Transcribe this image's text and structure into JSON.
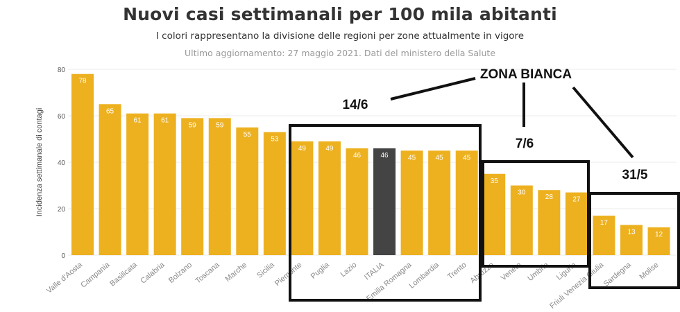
{
  "header": {
    "title": "Nuovi casi settimanali per 100 mila abitanti",
    "subtitle": "I colori rappresentano la divisione delle regioni per zone attualmente in vigore",
    "updated": "Ultimo aggiornamento: 27 maggio 2021. Dati del ministero della Salute"
  },
  "chart_data": {
    "type": "bar",
    "title": "Nuovi casi settimanali per 100 mila abitanti",
    "xlabel": "",
    "ylabel": "Incidenza settimanale di contagi",
    "ylim": [
      0,
      80
    ],
    "yticks": [
      0,
      20,
      40,
      60,
      80
    ],
    "grid": true,
    "categories": [
      "Valle d'Aosta",
      "Campania",
      "Basilicata",
      "Calabria",
      "Bolzano",
      "Toscana",
      "Marche",
      "Sicilia",
      "Piemonte",
      "Puglia",
      "Lazio",
      "ITALIA",
      "Emilia Romagna",
      "Lombardia",
      "Trento",
      "Abruzzo",
      "Veneto",
      "Umbria",
      "Liguria",
      "Friuli Venezia Giulia",
      "Sardegna",
      "Molise"
    ],
    "values": [
      78,
      65,
      61,
      61,
      59,
      59,
      55,
      53,
      49,
      49,
      46,
      46,
      45,
      45,
      45,
      35,
      30,
      28,
      27,
      17,
      13,
      12
    ],
    "colors": {
      "region": "#EDB120",
      "national": "#444444"
    },
    "highlight_category": "ITALIA"
  },
  "annotations": {
    "heading": "ZONA BIANCA",
    "groups": [
      {
        "label": "14/6",
        "from": "Piemonte",
        "to": "Trento"
      },
      {
        "label": "7/6",
        "from": "Abruzzo",
        "to": "Liguria"
      },
      {
        "label": "31/5",
        "from": "Friuli Venezia Giulia",
        "to": "Molise"
      }
    ]
  }
}
